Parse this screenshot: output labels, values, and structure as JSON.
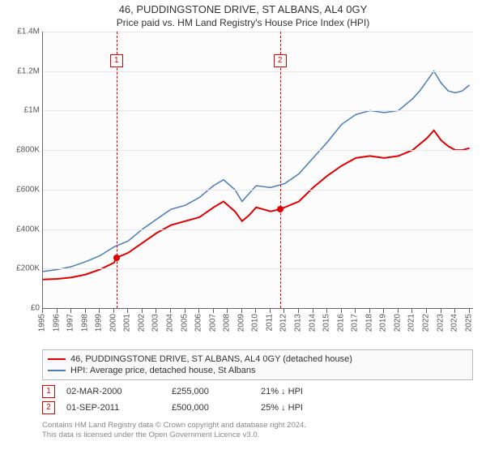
{
  "title": "46, PUDDINGSTONE DRIVE, ST ALBANS, AL4 0GY",
  "subtitle": "Price paid vs. HM Land Registry's House Price Index (HPI)",
  "chart": {
    "type": "line",
    "background_color": "#fcfcfc",
    "grid_color": "#e6e6e6",
    "axis_color": "#666666",
    "label_color": "#555555",
    "label_fontsize": 10,
    "ylim": [
      0,
      1400000
    ],
    "yticks": [
      0,
      200000,
      400000,
      600000,
      800000,
      1000000,
      1200000,
      1400000
    ],
    "ytick_labels": [
      "£0",
      "£200K",
      "£400K",
      "£600K",
      "£800K",
      "£1M",
      "£1.2M",
      "£1.4M"
    ],
    "xlim": [
      1995,
      2025.25
    ],
    "xticks": [
      1995,
      1996,
      1997,
      1998,
      1999,
      2000,
      2001,
      2002,
      2003,
      2004,
      2005,
      2006,
      2007,
      2008,
      2009,
      2010,
      2011,
      2012,
      2013,
      2014,
      2015,
      2016,
      2017,
      2018,
      2019,
      2020,
      2021,
      2022,
      2023,
      2024,
      2025
    ],
    "series": [
      {
        "id": "property",
        "label": "46, PUDDINGSTONE DRIVE, ST ALBANS, AL4 0GY (detached house)",
        "color": "#e00000",
        "line_width": 2,
        "points": [
          [
            1995.0,
            145000
          ],
          [
            1996.0,
            148000
          ],
          [
            1997.0,
            155000
          ],
          [
            1998.0,
            170000
          ],
          [
            1999.0,
            195000
          ],
          [
            2000.0,
            230000
          ],
          [
            2000.17,
            255000
          ],
          [
            2001.0,
            280000
          ],
          [
            2002.0,
            330000
          ],
          [
            2003.0,
            380000
          ],
          [
            2004.0,
            420000
          ],
          [
            2005.0,
            440000
          ],
          [
            2006.0,
            460000
          ],
          [
            2007.0,
            510000
          ],
          [
            2007.7,
            540000
          ],
          [
            2008.5,
            490000
          ],
          [
            2009.0,
            440000
          ],
          [
            2009.5,
            470000
          ],
          [
            2010.0,
            510000
          ],
          [
            2010.5,
            500000
          ],
          [
            2011.0,
            490000
          ],
          [
            2011.67,
            500000
          ],
          [
            2012.0,
            510000
          ],
          [
            2013.0,
            540000
          ],
          [
            2014.0,
            610000
          ],
          [
            2015.0,
            670000
          ],
          [
            2016.0,
            720000
          ],
          [
            2017.0,
            760000
          ],
          [
            2018.0,
            770000
          ],
          [
            2019.0,
            760000
          ],
          [
            2020.0,
            770000
          ],
          [
            2021.0,
            800000
          ],
          [
            2021.5,
            830000
          ],
          [
            2022.0,
            860000
          ],
          [
            2022.5,
            900000
          ],
          [
            2023.0,
            850000
          ],
          [
            2023.5,
            820000
          ],
          [
            2024.0,
            800000
          ],
          [
            2024.5,
            800000
          ],
          [
            2025.0,
            810000
          ]
        ]
      },
      {
        "id": "hpi",
        "label": "HPI: Average price, detached house, St Albans",
        "color": "#4a7ebb",
        "line_width": 1.5,
        "points": [
          [
            1995.0,
            185000
          ],
          [
            1996.0,
            195000
          ],
          [
            1997.0,
            210000
          ],
          [
            1998.0,
            235000
          ],
          [
            1999.0,
            265000
          ],
          [
            2000.0,
            310000
          ],
          [
            2001.0,
            340000
          ],
          [
            2002.0,
            400000
          ],
          [
            2003.0,
            450000
          ],
          [
            2004.0,
            500000
          ],
          [
            2005.0,
            520000
          ],
          [
            2006.0,
            560000
          ],
          [
            2007.0,
            620000
          ],
          [
            2007.7,
            650000
          ],
          [
            2008.5,
            600000
          ],
          [
            2009.0,
            540000
          ],
          [
            2009.5,
            580000
          ],
          [
            2010.0,
            620000
          ],
          [
            2011.0,
            610000
          ],
          [
            2012.0,
            630000
          ],
          [
            2013.0,
            680000
          ],
          [
            2014.0,
            760000
          ],
          [
            2015.0,
            840000
          ],
          [
            2016.0,
            930000
          ],
          [
            2017.0,
            980000
          ],
          [
            2018.0,
            1000000
          ],
          [
            2019.0,
            990000
          ],
          [
            2020.0,
            1000000
          ],
          [
            2021.0,
            1060000
          ],
          [
            2021.5,
            1100000
          ],
          [
            2022.0,
            1150000
          ],
          [
            2022.5,
            1200000
          ],
          [
            2023.0,
            1140000
          ],
          [
            2023.5,
            1100000
          ],
          [
            2024.0,
            1090000
          ],
          [
            2024.5,
            1100000
          ],
          [
            2025.0,
            1130000
          ]
        ]
      }
    ],
    "markers": [
      {
        "n": "1",
        "x": 2000.17,
        "y": 255000,
        "color": "#e00000"
      },
      {
        "n": "2",
        "x": 2011.67,
        "y": 500000,
        "color": "#e00000"
      }
    ]
  },
  "legend": {
    "border_color": "#bbbbbb",
    "items": [
      {
        "color": "#e00000",
        "text": "46, PUDDINGSTONE DRIVE, ST ALBANS, AL4 0GY (detached house)"
      },
      {
        "color": "#4a7ebb",
        "text": "HPI: Average price, detached house, St Albans"
      }
    ]
  },
  "transactions": [
    {
      "n": "1",
      "date": "02-MAR-2000",
      "price": "£255,000",
      "delta": "21% ↓ HPI"
    },
    {
      "n": "2",
      "date": "01-SEP-2011",
      "price": "£500,000",
      "delta": "25% ↓ HPI"
    }
  ],
  "footer": {
    "line1": "Contains HM Land Registry data © Crown copyright and database right 2024.",
    "line2": "This data is licensed under the Open Government Licence v3.0."
  }
}
